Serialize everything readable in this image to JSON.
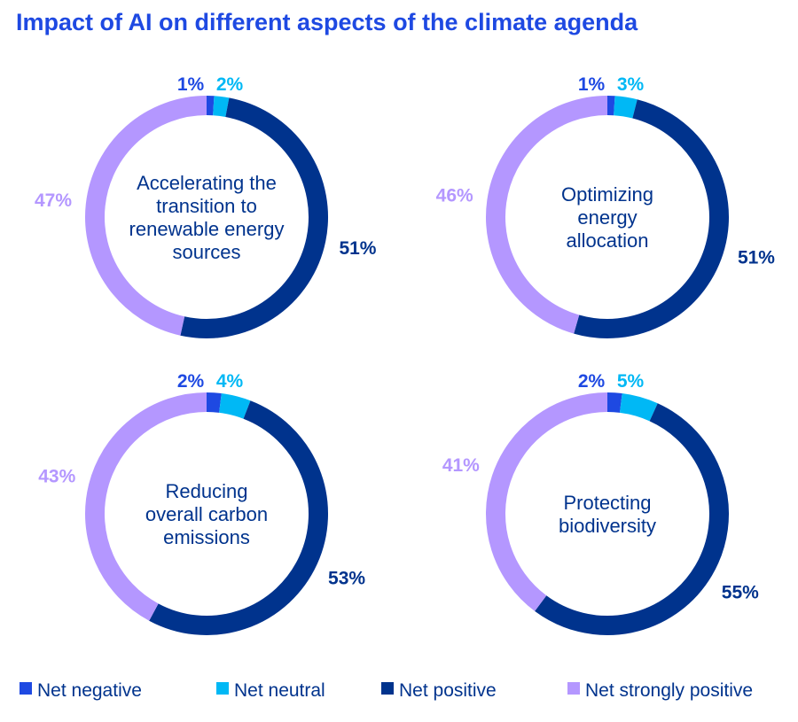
{
  "title": "Impact of AI on different aspects of the climate agenda",
  "chart_data": {
    "type": "donut",
    "title": "Impact of AI on different aspects of the climate agenda",
    "legend_position": "bottom",
    "series_names": [
      "Net negative",
      "Net neutral",
      "Net positive",
      "Net strongly positive"
    ],
    "colors": [
      "#1E49E2",
      "#00B8F5",
      "#00338D",
      "#B497FF"
    ],
    "charts": [
      {
        "label": [
          "Accelerating the",
          "transition to",
          "renewable energy",
          "sources"
        ],
        "values": [
          1,
          2,
          51,
          47
        ]
      },
      {
        "label": [
          "Optimizing",
          "energy",
          "allocation"
        ],
        "values": [
          1,
          3,
          51,
          46
        ]
      },
      {
        "label": [
          "Reducing",
          "overall carbon",
          "emissions"
        ],
        "values": [
          2,
          4,
          53,
          43
        ]
      },
      {
        "label": [
          "Protecting",
          "biodiversity"
        ],
        "values": [
          2,
          5,
          55,
          41
        ]
      }
    ]
  }
}
